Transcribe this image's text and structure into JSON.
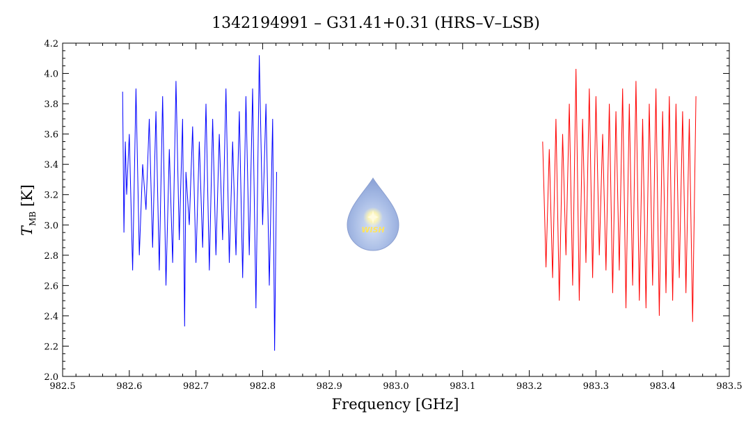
{
  "chart_data": {
    "type": "line",
    "title": "1342194991 – G31.41+0.31 (HRS–V–LSB)",
    "xlabel": "Frequency [GHz]",
    "ylabel": {
      "main": "T",
      "sub": "MB",
      "unit": " [K]"
    },
    "xlim": [
      982.5,
      983.5
    ],
    "ylim": [
      2.0,
      4.2
    ],
    "x_ticks": [
      982.5,
      982.6,
      982.7,
      982.8,
      982.9,
      983.0,
      983.1,
      983.2,
      983.3,
      983.4,
      983.5
    ],
    "x_tick_labels": [
      "982.5",
      "982.6",
      "982.7",
      "982.8",
      "982.9",
      "983.0",
      "983.1",
      "983.2",
      "983.3",
      "983.4",
      "983.5"
    ],
    "y_ticks": [
      2.0,
      2.2,
      2.4,
      2.6,
      2.8,
      3.0,
      3.2,
      3.4,
      3.6,
      3.8,
      4.0,
      4.2
    ],
    "y_tick_labels": [
      "2.0",
      "2.2",
      "2.4",
      "2.6",
      "2.8",
      "3.0",
      "3.2",
      "3.4",
      "3.6",
      "3.8",
      "4.0",
      "4.2"
    ],
    "grid": false,
    "series": [
      {
        "color": "#0000ff",
        "x": [
          982.59,
          982.592,
          982.594,
          982.596,
          982.6,
          982.605,
          982.61,
          982.615,
          982.62,
          982.625,
          982.63,
          982.635,
          982.64,
          982.645,
          982.65,
          982.655,
          982.66,
          982.665,
          982.67,
          982.675,
          982.68,
          982.683,
          982.685,
          982.69,
          982.695,
          982.7,
          982.705,
          982.71,
          982.715,
          982.72,
          982.725,
          982.73,
          982.735,
          982.74,
          982.745,
          982.75,
          982.755,
          982.76,
          982.765,
          982.77,
          982.775,
          982.78,
          982.785,
          982.79,
          982.795,
          982.8,
          982.805,
          982.81,
          982.815,
          982.818,
          982.821
        ],
        "y": [
          3.88,
          2.95,
          3.55,
          3.2,
          3.6,
          2.7,
          3.9,
          2.8,
          3.4,
          3.1,
          3.7,
          2.85,
          3.75,
          2.7,
          3.85,
          2.6,
          3.5,
          2.75,
          3.95,
          2.9,
          3.7,
          2.33,
          3.35,
          3.0,
          3.65,
          2.75,
          3.55,
          2.85,
          3.8,
          2.7,
          3.7,
          2.8,
          3.6,
          2.9,
          3.9,
          2.75,
          3.55,
          2.8,
          3.75,
          2.65,
          3.85,
          2.8,
          3.9,
          2.45,
          4.12,
          3.0,
          3.8,
          2.6,
          3.7,
          2.17,
          3.35
        ]
      },
      {
        "color": "#ff0000",
        "x": [
          983.22,
          983.225,
          983.23,
          983.235,
          983.24,
          983.245,
          983.25,
          983.255,
          983.26,
          983.265,
          983.27,
          983.275,
          983.28,
          983.285,
          983.29,
          983.295,
          983.3,
          983.305,
          983.31,
          983.315,
          983.32,
          983.325,
          983.33,
          983.335,
          983.34,
          983.345,
          983.35,
          983.355,
          983.36,
          983.365,
          983.37,
          983.375,
          983.38,
          983.385,
          983.39,
          983.395,
          983.4,
          983.405,
          983.41,
          983.415,
          983.42,
          983.425,
          983.43,
          983.435,
          983.44,
          983.445,
          983.45
        ],
        "y": [
          3.55,
          2.72,
          3.5,
          2.65,
          3.7,
          2.5,
          3.6,
          2.8,
          3.8,
          2.6,
          4.03,
          2.5,
          3.7,
          2.75,
          3.9,
          2.65,
          3.85,
          2.8,
          3.6,
          2.7,
          3.8,
          2.55,
          3.75,
          2.7,
          3.9,
          2.45,
          3.8,
          2.6,
          3.95,
          2.5,
          3.7,
          2.45,
          3.8,
          2.6,
          3.9,
          2.4,
          3.75,
          2.55,
          3.85,
          2.5,
          3.8,
          2.65,
          3.75,
          2.55,
          3.7,
          2.36,
          3.85
        ]
      }
    ]
  },
  "logo": {
    "text": "WISH",
    "name": "wish-logo"
  }
}
